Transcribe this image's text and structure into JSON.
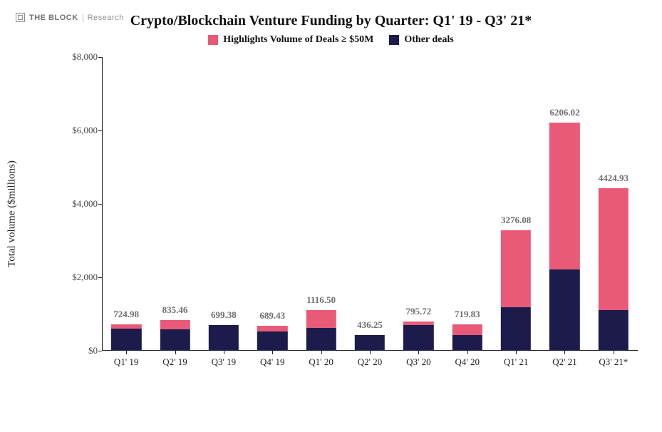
{
  "brand": {
    "name": "THE BLOCK",
    "sub": "Research"
  },
  "chart": {
    "type": "stacked-bar",
    "title": "Crypto/Blockchain Venture Funding by Quarter: Q1' 19 - Q3' 21*",
    "ylabel": "Total volume ($millions)",
    "ylim": [
      0,
      8000
    ],
    "ytick_step": 2000,
    "yticks": [
      {
        "v": 0,
        "label": "$0"
      },
      {
        "v": 2000,
        "label": "$2,000"
      },
      {
        "v": 4000,
        "label": "$4,000"
      },
      {
        "v": 6000,
        "label": "$6,000"
      },
      {
        "v": 8000,
        "label": "$8,000"
      }
    ],
    "legend": [
      {
        "key": "big",
        "label": "Highlights Volume of Deals ≥ $50M",
        "color": "#e85a78"
      },
      {
        "key": "other",
        "label": "Other deals",
        "color": "#1c1b4b"
      }
    ],
    "series_order": [
      "other",
      "big"
    ],
    "colors": {
      "big": "#e85a78",
      "other": "#1c1b4b"
    },
    "bar_width_ratio": 0.62,
    "background_color": "#ffffff",
    "axis_color": "#202020",
    "label_color": "#6e6e6e",
    "title_fontsize": 20,
    "tick_fontsize": 13,
    "categories": [
      {
        "label": "Q1' 19",
        "total_label": "724.98",
        "values": {
          "other": 610,
          "big": 114.98
        }
      },
      {
        "label": "Q2' 19",
        "total_label": "835.46",
        "values": {
          "other": 590,
          "big": 245.46
        }
      },
      {
        "label": "Q3' 19",
        "total_label": "699.38",
        "values": {
          "other": 699.38,
          "big": 0
        }
      },
      {
        "label": "Q4' 19",
        "total_label": "689.43",
        "values": {
          "other": 530,
          "big": 159.43
        }
      },
      {
        "label": "Q1' 20",
        "total_label": "1116.50",
        "values": {
          "other": 620,
          "big": 496.5
        }
      },
      {
        "label": "Q2' 20",
        "total_label": "436.25",
        "values": {
          "other": 436.25,
          "big": 0
        }
      },
      {
        "label": "Q3' 20",
        "total_label": "795.72",
        "values": {
          "other": 705,
          "big": 90.72
        }
      },
      {
        "label": "Q4' 20",
        "total_label": "719.83",
        "values": {
          "other": 430,
          "big": 289.83
        }
      },
      {
        "label": "Q1' 21",
        "total_label": "3276.08",
        "values": {
          "other": 1180,
          "big": 2096.08
        }
      },
      {
        "label": "Q2' 21",
        "total_label": "6206.02",
        "values": {
          "other": 2220,
          "big": 3986.02
        }
      },
      {
        "label": "Q3' 21*",
        "total_label": "4424.93",
        "values": {
          "other": 1100,
          "big": 3324.93
        }
      }
    ]
  }
}
